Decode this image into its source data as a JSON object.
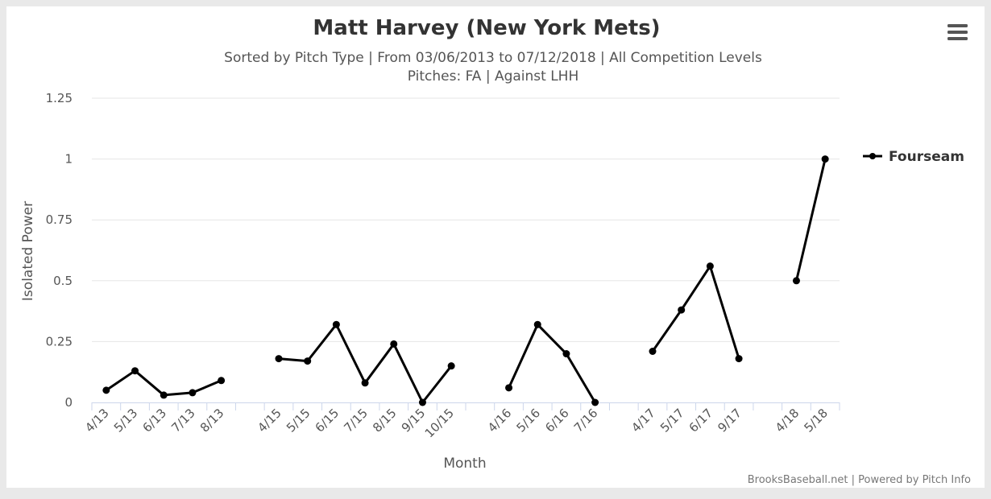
{
  "colors": {
    "series": "#000000",
    "grid": "#e6e6e6",
    "axis": "#ccd6eb",
    "menu": "#555555"
  },
  "menu_icon": "hamburger-menu-icon",
  "credits": "BrooksBaseball.net | Powered by Pitch Info",
  "chart_data": {
    "type": "line",
    "title": "Matt Harvey (New York Mets)",
    "subtitle_line1": "Sorted by Pitch Type | From 03/06/2013 to 07/12/2018 | All Competition Levels",
    "subtitle_line2": "Pitches: FA | Against LHH",
    "xlabel": "Month",
    "ylabel": "Isolated Power",
    "ylim": [
      0,
      1.25
    ],
    "yticks": [
      "0",
      "0.25",
      "0.5",
      "0.75",
      "1",
      "1.25"
    ],
    "ytick_values": [
      0,
      0.25,
      0.5,
      0.75,
      1,
      1.25
    ],
    "grid": true,
    "legend_position": "right",
    "categories": [
      "4/13",
      "5/13",
      "6/13",
      "7/13",
      "8/13",
      "",
      "4/15",
      "5/15",
      "6/15",
      "7/15",
      "8/15",
      "9/15",
      "10/15",
      "",
      "4/16",
      "5/16",
      "6/16",
      "7/16",
      "",
      "4/17",
      "5/17",
      "6/17",
      "9/17",
      "",
      "4/18",
      "5/18"
    ],
    "series": [
      {
        "name": "Fourseam",
        "values": [
          0.05,
          0.13,
          0.03,
          0.04,
          0.09,
          null,
          0.18,
          0.17,
          0.32,
          0.08,
          0.24,
          0.0,
          0.15,
          null,
          0.06,
          0.32,
          0.2,
          0.0,
          null,
          0.21,
          0.38,
          0.56,
          0.18,
          null,
          0.5,
          1.0
        ]
      }
    ]
  }
}
